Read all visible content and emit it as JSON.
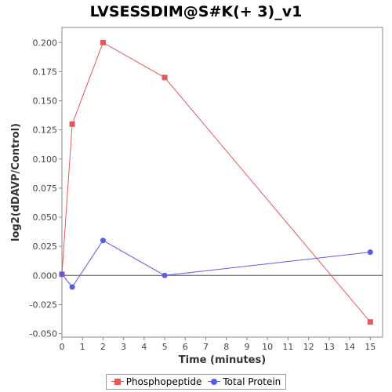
{
  "chart_data": {
    "type": "line",
    "title": "LVSESSDIM@S#K(+ 3)_v1",
    "xlabel": "Time (minutes)",
    "ylabel": "log2(dDAVP/Control)",
    "xlim": [
      0,
      15.6
    ],
    "ylim": [
      -0.053,
      0.213
    ],
    "xticks": [
      0,
      1,
      2,
      3,
      4,
      5,
      6,
      7,
      8,
      9,
      10,
      11,
      12,
      13,
      14,
      15
    ],
    "yticks": [
      -0.05,
      -0.025,
      0.0,
      0.025,
      0.05,
      0.075,
      0.1,
      0.125,
      0.15,
      0.175,
      0.2
    ],
    "ytick_labels": [
      "-0.050",
      "-0.025",
      "0.000",
      "0.025",
      "0.050",
      "0.075",
      "0.100",
      "0.125",
      "0.150",
      "0.175",
      "0.200"
    ],
    "zero_line": true,
    "grid": false,
    "legend_position": "bottom",
    "series": [
      {
        "name": "Phosphopeptide",
        "color": "#e8585a",
        "marker": "square",
        "x": [
          0,
          0.5,
          2,
          5,
          15
        ],
        "y": [
          0.001,
          0.13,
          0.2,
          0.17,
          -0.04
        ]
      },
      {
        "name": "Total Protein",
        "color": "#5b5be6",
        "marker": "circle",
        "x": [
          0,
          0.5,
          2,
          5,
          15
        ],
        "y": [
          0.001,
          -0.01,
          0.03,
          0.0,
          0.02
        ]
      }
    ]
  }
}
